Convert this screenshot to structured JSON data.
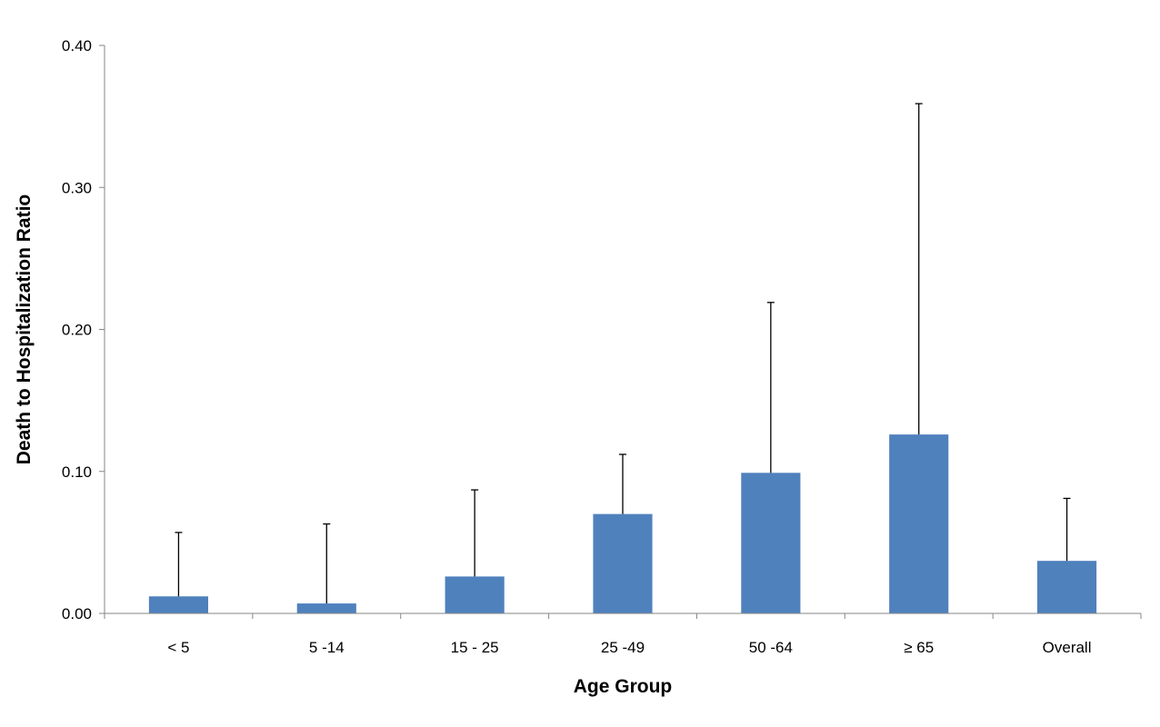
{
  "chart_data": {
    "type": "bar",
    "title": "",
    "xlabel": "Age Group",
    "ylabel": "Death to Hospitalization Ratio",
    "categories": [
      "< 5",
      "5 -14",
      "15 - 25",
      "25 -49",
      "50 -64",
      "≥ 65",
      "Overall"
    ],
    "values": [
      0.012,
      0.007,
      0.026,
      0.07,
      0.099,
      0.126,
      0.037
    ],
    "error_upper": [
      0.057,
      0.063,
      0.087,
      0.112,
      0.219,
      0.359,
      0.081
    ],
    "ylim": [
      0,
      0.4
    ],
    "yticks": [
      "0.00",
      "0.10",
      "0.20",
      "0.30",
      "0.40"
    ],
    "ytick_values": [
      0,
      0.1,
      0.2,
      0.3,
      0.4
    ],
    "grid": false,
    "legend": "none",
    "bar_color": "#4f81bd",
    "error_color": "#000000",
    "axis_color": "#868686"
  }
}
